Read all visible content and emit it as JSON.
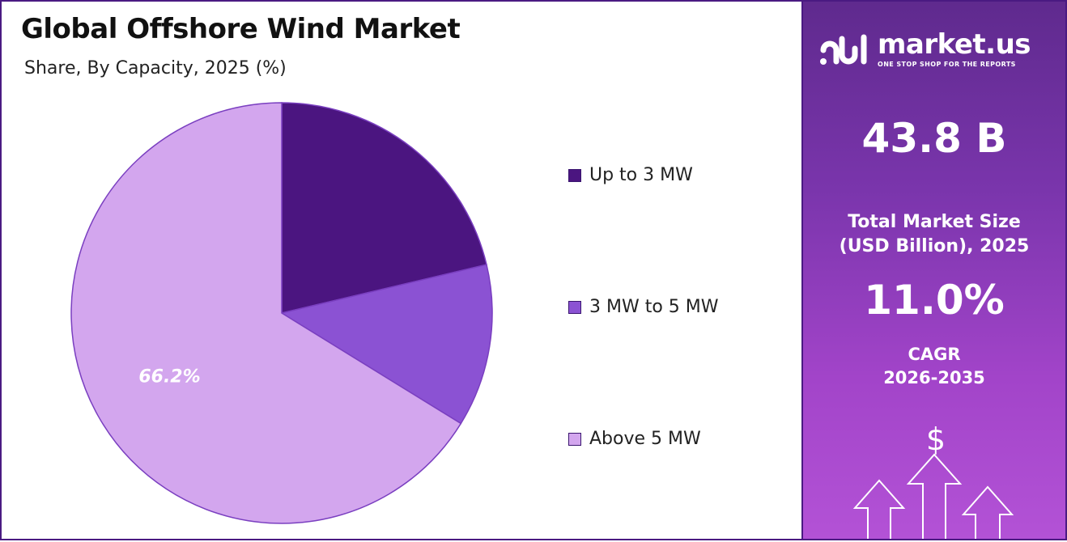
{
  "header": {
    "title": "Global Offshore Wind Market",
    "subtitle": "Share, By Capacity, 2025 (%)"
  },
  "chart_data": {
    "type": "pie",
    "categories": [
      "Up to 3 MW",
      "3 MW to 5 MW",
      "Above 5 MW"
    ],
    "values": [
      21.3,
      12.5,
      66.2
    ],
    "data_labels": [
      "",
      "",
      "66.2%"
    ],
    "colors": [
      "#4b1580",
      "#8b52d3",
      "#d3a6ee"
    ],
    "legend_position": "right"
  },
  "brand": {
    "name": "market.us",
    "tagline": "ONE STOP SHOP FOR THE REPORTS"
  },
  "stats": {
    "market_size_value": "43.8 B",
    "market_size_label_line1": "Total Market Size",
    "market_size_label_line2": "(USD Billion), 2025",
    "cagr_value": "11.0%",
    "cagr_label_line1": "CAGR",
    "cagr_label_line2": "2026-2035"
  },
  "icons": {
    "dollar_symbol": "$",
    "growth_icon": "arrows-up-icon"
  }
}
